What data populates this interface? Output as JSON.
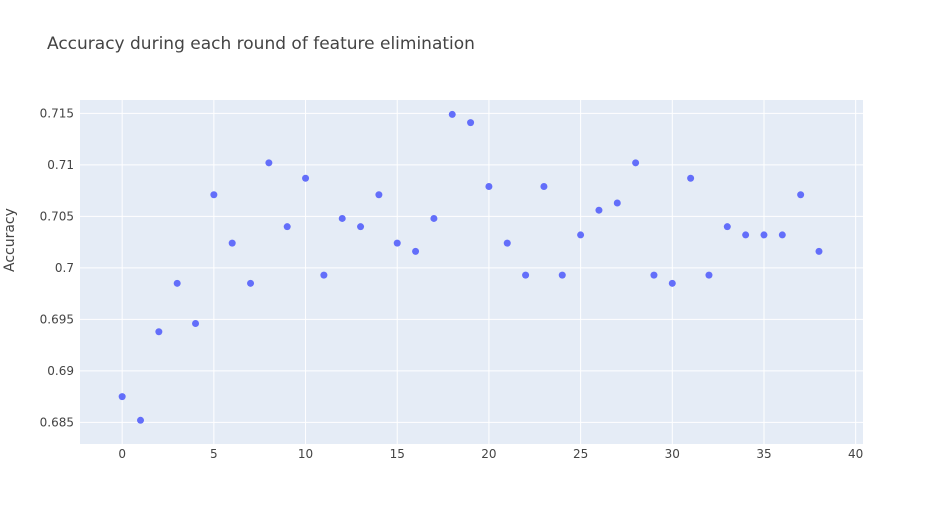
{
  "chart_data": {
    "type": "scatter",
    "title": "Accuracy during each round of feature elimination",
    "ylabel": "Accuracy",
    "xlabel": "",
    "xlim": [
      -2.3,
      40.4
    ],
    "ylim": [
      0.6829,
      0.7163
    ],
    "x_ticks": [
      0,
      5,
      10,
      15,
      20,
      25,
      30,
      35,
      40
    ],
    "y_ticks": [
      0.685,
      0.69,
      0.695,
      0.7,
      0.705,
      0.71,
      0.715
    ],
    "y_tick_labels": [
      "0.685",
      "0.69",
      "0.695",
      "0.7",
      "0.705",
      "0.71",
      "0.715"
    ],
    "color": "#636efa",
    "background": "#e5ecf6",
    "x": [
      0,
      1,
      2,
      3,
      4,
      5,
      6,
      7,
      8,
      9,
      10,
      11,
      12,
      13,
      14,
      15,
      16,
      17,
      18,
      19,
      20,
      21,
      22,
      23,
      24,
      25,
      26,
      27,
      28,
      29,
      30,
      31,
      32,
      33,
      34,
      35,
      36,
      37,
      38
    ],
    "y": [
      0.6875,
      0.6852,
      0.6938,
      0.6985,
      0.6946,
      0.7071,
      0.7024,
      0.6985,
      0.7102,
      0.704,
      0.7087,
      0.6993,
      0.7048,
      0.704,
      0.7071,
      0.7024,
      0.7016,
      0.7048,
      0.7149,
      0.7141,
      0.7079,
      0.7024,
      0.6993,
      0.7079,
      0.6993,
      0.7032,
      0.7056,
      0.7063,
      0.7102,
      0.6993,
      0.6985,
      0.7087,
      0.6993,
      0.704,
      0.7032,
      0.7032,
      0.7032,
      0.7071,
      0.7016
    ]
  }
}
